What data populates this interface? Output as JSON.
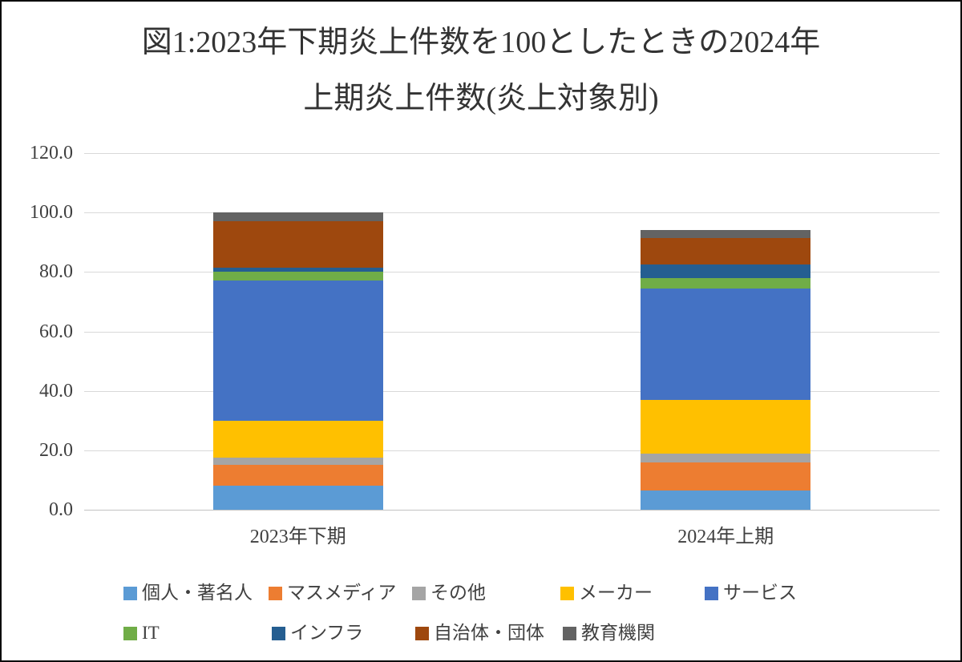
{
  "title": {
    "line1": "図1:2023年下期炎上件数を100としたときの2024年",
    "line2": "上期炎上件数(炎上対象別)"
  },
  "chart_data": {
    "type": "bar",
    "subtype": "stacked-vertical",
    "title": "図1:2023年下期炎上件数を100としたときの2024年上期炎上件数(炎上対象別)",
    "categories": [
      "2023年下期",
      "2024年上期"
    ],
    "series": [
      {
        "name": "個人・著名人",
        "color": "#5B9BD5",
        "values": [
          8,
          6.5
        ]
      },
      {
        "name": "マスメディア",
        "color": "#ED7D31",
        "values": [
          7,
          9.5
        ]
      },
      {
        "name": "その他",
        "color": "#A5A5A5",
        "values": [
          2.5,
          3
        ]
      },
      {
        "name": "メーカー",
        "color": "#FFC000",
        "values": [
          12.5,
          18
        ]
      },
      {
        "name": "サービス",
        "color": "#4472C4",
        "values": [
          47,
          37.5
        ]
      },
      {
        "name": "IT",
        "color": "#70AD47",
        "values": [
          3,
          3.5
        ]
      },
      {
        "name": "インフラ",
        "color": "#255E91",
        "values": [
          1.5,
          4.5
        ]
      },
      {
        "name": "自治体・団体",
        "color": "#9E480E",
        "values": [
          15.5,
          9
        ]
      },
      {
        "name": "教育機関",
        "color": "#636363",
        "values": [
          3,
          2.5
        ]
      }
    ],
    "stack_totals": [
      100,
      94
    ],
    "y_axis": {
      "min": 0,
      "max": 120,
      "step": 20,
      "tick_labels": [
        "0.0",
        "20.0",
        "40.0",
        "60.0",
        "80.0",
        "100.0",
        "120.0"
      ]
    },
    "grid": true,
    "legend_position": "bottom",
    "legend_rows": [
      [
        "個人・著名人",
        "マスメディア",
        "その他",
        "メーカー",
        "サービス"
      ],
      [
        "IT",
        "インフラ",
        "自治体・団体",
        "教育機関"
      ]
    ],
    "colors": {
      "gridline": "#D9D9D9",
      "axis_line": "#C3C3C3",
      "text": "#404040",
      "title_text": "#333333"
    }
  }
}
